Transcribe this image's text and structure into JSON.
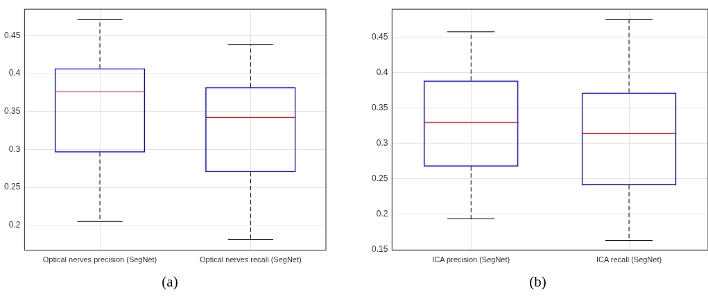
{
  "chart_data": [
    {
      "type": "box",
      "categories": [
        "Optical nerves precision (SegNet)",
        "Optical nerves recall (SegNet)"
      ],
      "boxes": [
        {
          "low": 0.205,
          "q1": 0.296,
          "median": 0.376,
          "q3": 0.407,
          "high": 0.471
        },
        {
          "low": 0.181,
          "q1": 0.27,
          "median": 0.342,
          "q3": 0.382,
          "high": 0.438
        }
      ],
      "color": "#0000ff",
      "ylim": [
        0.167,
        0.485
      ],
      "yticks": [
        0.2,
        0.25,
        0.3,
        0.35,
        0.4,
        0.45
      ],
      "grid": true,
      "legend": false,
      "annotations": [
        "(a)"
      ]
    },
    {
      "type": "box",
      "categories": [
        "ICA precision (SegNet)",
        "ICA recall (SegNet)"
      ],
      "boxes": [
        {
          "low": 0.1935,
          "q1": 0.2675,
          "median": 0.33,
          "q3": 0.389,
          "high": 0.458
        },
        {
          "low": 0.163,
          "q1": 0.241,
          "median": 0.314,
          "q3": 0.372,
          "high": 0.475
        }
      ],
      "color": "#0000ff",
      "ylim": [
        0.149,
        0.49
      ],
      "yticks": [
        0.15,
        0.2,
        0.25,
        0.3,
        0.35,
        0.4,
        0.45
      ],
      "grid": true,
      "legend": false,
      "annotations": [
        "(b)"
      ]
    }
  ]
}
